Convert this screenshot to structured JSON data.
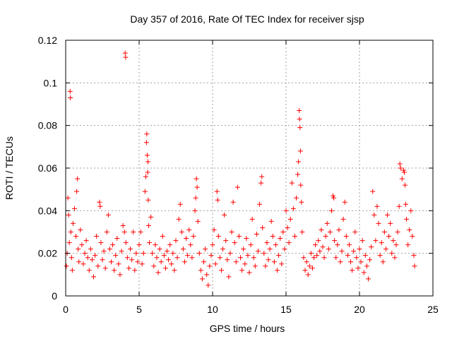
{
  "chart_data": {
    "type": "scatter",
    "title": "Day 357 of 2016, Rate Of TEC Index for receiver sjsp",
    "xlabel": "GPS time / hours",
    "ylabel": "ROTI / TECUs",
    "xlim": [
      0,
      25
    ],
    "ylim": [
      0,
      0.12
    ],
    "x_ticks": [
      0,
      5,
      10,
      15,
      20,
      25
    ],
    "y_ticks": [
      0,
      0.02,
      0.04,
      0.06,
      0.08,
      0.1,
      0.12
    ],
    "x_tick_labels": [
      "0",
      "5",
      "10",
      "15",
      "20",
      "25"
    ],
    "y_tick_labels": [
      "0",
      "0.02",
      "0.04",
      "0.06",
      "0.08",
      "0.1",
      "0.12"
    ],
    "grid": true,
    "marker": "plus",
    "color": "#ff0000",
    "series": [
      {
        "name": "ROTI",
        "points": [
          [
            0.05,
            0.014
          ],
          [
            0.1,
            0.02
          ],
          [
            0.15,
            0.046
          ],
          [
            0.2,
            0.038
          ],
          [
            0.25,
            0.025
          ],
          [
            0.3,
            0.096
          ],
          [
            0.32,
            0.093
          ],
          [
            0.35,
            0.03
          ],
          [
            0.4,
            0.018
          ],
          [
            0.45,
            0.012
          ],
          [
            0.5,
            0.034
          ],
          [
            0.6,
            0.041
          ],
          [
            0.7,
            0.028
          ],
          [
            0.75,
            0.049
          ],
          [
            0.8,
            0.055
          ],
          [
            0.85,
            0.022
          ],
          [
            0.9,
            0.016
          ],
          [
            1.0,
            0.031
          ],
          [
            1.1,
            0.024
          ],
          [
            1.2,
            0.015
          ],
          [
            1.3,
            0.02
          ],
          [
            1.4,
            0.026
          ],
          [
            1.5,
            0.018
          ],
          [
            1.6,
            0.012
          ],
          [
            1.7,
            0.022
          ],
          [
            1.8,
            0.017
          ],
          [
            1.9,
            0.009
          ],
          [
            2.0,
            0.019
          ],
          [
            2.1,
            0.028
          ],
          [
            2.2,
            0.014
          ],
          [
            2.3,
            0.044
          ],
          [
            2.35,
            0.042
          ],
          [
            2.4,
            0.025
          ],
          [
            2.5,
            0.017
          ],
          [
            2.6,
            0.021
          ],
          [
            2.7,
            0.013
          ],
          [
            2.8,
            0.03
          ],
          [
            2.9,
            0.038
          ],
          [
            3.0,
            0.022
          ],
          [
            3.1,
            0.016
          ],
          [
            3.2,
            0.024
          ],
          [
            3.3,
            0.012
          ],
          [
            3.4,
            0.019
          ],
          [
            3.5,
            0.027
          ],
          [
            3.6,
            0.015
          ],
          [
            3.7,
            0.01
          ],
          [
            3.8,
            0.021
          ],
          [
            3.9,
            0.033
          ],
          [
            4.0,
            0.03
          ],
          [
            4.05,
            0.114
          ],
          [
            4.08,
            0.112
          ],
          [
            4.1,
            0.025
          ],
          [
            4.2,
            0.018
          ],
          [
            4.3,
            0.013
          ],
          [
            4.4,
            0.022
          ],
          [
            4.5,
            0.017
          ],
          [
            4.6,
            0.03
          ],
          [
            4.7,
            0.012
          ],
          [
            4.8,
            0.02
          ],
          [
            4.9,
            0.016
          ],
          [
            5.0,
            0.024
          ],
          [
            5.1,
            0.03
          ],
          [
            5.2,
            0.015
          ],
          [
            5.3,
            0.02
          ],
          [
            5.4,
            0.049
          ],
          [
            5.45,
            0.056
          ],
          [
            5.5,
            0.072
          ],
          [
            5.52,
            0.076
          ],
          [
            5.55,
            0.066
          ],
          [
            5.58,
            0.058
          ],
          [
            5.6,
            0.063
          ],
          [
            5.62,
            0.045
          ],
          [
            5.65,
            0.033
          ],
          [
            5.7,
            0.025
          ],
          [
            5.8,
            0.037
          ],
          [
            5.9,
            0.02
          ],
          [
            6.0,
            0.014
          ],
          [
            6.1,
            0.024
          ],
          [
            6.2,
            0.018
          ],
          [
            6.3,
            0.011
          ],
          [
            6.4,
            0.022
          ],
          [
            6.5,
            0.016
          ],
          [
            6.6,
            0.028
          ],
          [
            6.7,
            0.019
          ],
          [
            6.8,
            0.013
          ],
          [
            6.9,
            0.021
          ],
          [
            7.0,
            0.017
          ],
          [
            7.1,
            0.024
          ],
          [
            7.2,
            0.015
          ],
          [
            7.3,
            0.02
          ],
          [
            7.4,
            0.012
          ],
          [
            7.5,
            0.026
          ],
          [
            7.6,
            0.018
          ],
          [
            7.7,
            0.036
          ],
          [
            7.8,
            0.043
          ],
          [
            7.9,
            0.03
          ],
          [
            8.0,
            0.022
          ],
          [
            8.1,
            0.016
          ],
          [
            8.2,
            0.027
          ],
          [
            8.3,
            0.019
          ],
          [
            8.4,
            0.031
          ],
          [
            8.5,
            0.024
          ],
          [
            8.6,
            0.018
          ],
          [
            8.7,
            0.028
          ],
          [
            8.8,
            0.04
          ],
          [
            8.85,
            0.046
          ],
          [
            8.9,
            0.055
          ],
          [
            8.95,
            0.051
          ],
          [
            9.0,
            0.035
          ],
          [
            9.1,
            0.02
          ],
          [
            9.2,
            0.012
          ],
          [
            9.3,
            0.008
          ],
          [
            9.4,
            0.016
          ],
          [
            9.5,
            0.022
          ],
          [
            9.6,
            0.01
          ],
          [
            9.7,
            0.005
          ],
          [
            9.8,
            0.014
          ],
          [
            9.9,
            0.019
          ],
          [
            10.0,
            0.024
          ],
          [
            10.1,
            0.031
          ],
          [
            10.2,
            0.015
          ],
          [
            10.3,
            0.049
          ],
          [
            10.35,
            0.045
          ],
          [
            10.4,
            0.028
          ],
          [
            10.5,
            0.018
          ],
          [
            10.6,
            0.012
          ],
          [
            10.7,
            0.022
          ],
          [
            10.8,
            0.038
          ],
          [
            10.9,
            0.026
          ],
          [
            11.0,
            0.017
          ],
          [
            11.1,
            0.009
          ],
          [
            11.2,
            0.02
          ],
          [
            11.3,
            0.03
          ],
          [
            11.4,
            0.044
          ],
          [
            11.5,
            0.025
          ],
          [
            11.6,
            0.016
          ],
          [
            11.7,
            0.051
          ],
          [
            11.8,
            0.028
          ],
          [
            11.9,
            0.018
          ],
          [
            12.0,
            0.012
          ],
          [
            12.1,
            0.022
          ],
          [
            12.2,
            0.015
          ],
          [
            12.3,
            0.027
          ],
          [
            12.4,
            0.019
          ],
          [
            12.5,
            0.011
          ],
          [
            12.6,
            0.024
          ],
          [
            12.7,
            0.036
          ],
          [
            12.8,
            0.018
          ],
          [
            12.9,
            0.014
          ],
          [
            13.0,
            0.029
          ],
          [
            13.1,
            0.021
          ],
          [
            13.2,
            0.043
          ],
          [
            13.3,
            0.053
          ],
          [
            13.35,
            0.056
          ],
          [
            13.4,
            0.032
          ],
          [
            13.5,
            0.02
          ],
          [
            13.6,
            0.014
          ],
          [
            13.7,
            0.025
          ],
          [
            13.8,
            0.017
          ],
          [
            13.9,
            0.022
          ],
          [
            14.0,
            0.035
          ],
          [
            14.1,
            0.028
          ],
          [
            14.2,
            0.016
          ],
          [
            14.3,
            0.024
          ],
          [
            14.4,
            0.012
          ],
          [
            14.5,
            0.019
          ],
          [
            14.6,
            0.027
          ],
          [
            14.7,
            0.015
          ],
          [
            14.8,
            0.03
          ],
          [
            14.9,
            0.022
          ],
          [
            15.0,
            0.04
          ],
          [
            15.1,
            0.032
          ],
          [
            15.2,
            0.025
          ],
          [
            15.3,
            0.036
          ],
          [
            15.4,
            0.053
          ],
          [
            15.5,
            0.041
          ],
          [
            15.6,
            0.028
          ],
          [
            15.7,
            0.046
          ],
          [
            15.8,
            0.057
          ],
          [
            15.85,
            0.063
          ],
          [
            15.9,
            0.087
          ],
          [
            15.92,
            0.083
          ],
          [
            15.95,
            0.079
          ],
          [
            15.98,
            0.068
          ],
          [
            16.0,
            0.052
          ],
          [
            16.05,
            0.044
          ],
          [
            16.1,
            0.03
          ],
          [
            16.2,
            0.018
          ],
          [
            16.3,
            0.012
          ],
          [
            16.4,
            0.016
          ],
          [
            16.5,
            0.01
          ],
          [
            16.6,
            0.014
          ],
          [
            16.7,
            0.02
          ],
          [
            16.8,
            0.013
          ],
          [
            16.9,
            0.018
          ],
          [
            17.0,
            0.024
          ],
          [
            17.1,
            0.019
          ],
          [
            17.2,
            0.026
          ],
          [
            17.3,
            0.021
          ],
          [
            17.4,
            0.031
          ],
          [
            17.5,
            0.023
          ],
          [
            17.6,
            0.018
          ],
          [
            17.7,
            0.028
          ],
          [
            17.8,
            0.034
          ],
          [
            17.9,
            0.022
          ],
          [
            18.0,
            0.03
          ],
          [
            18.1,
            0.04
          ],
          [
            18.2,
            0.047
          ],
          [
            18.25,
            0.046
          ],
          [
            18.3,
            0.026
          ],
          [
            18.4,
            0.018
          ],
          [
            18.5,
            0.024
          ],
          [
            18.6,
            0.031
          ],
          [
            18.7,
            0.016
          ],
          [
            18.8,
            0.021
          ],
          [
            18.9,
            0.036
          ],
          [
            19.0,
            0.044
          ],
          [
            19.1,
            0.028
          ],
          [
            19.2,
            0.019
          ],
          [
            19.3,
            0.024
          ],
          [
            19.4,
            0.016
          ],
          [
            19.5,
            0.012
          ],
          [
            19.6,
            0.021
          ],
          [
            19.7,
            0.03
          ],
          [
            19.8,
            0.018
          ],
          [
            19.9,
            0.013
          ],
          [
            20.0,
            0.022
          ],
          [
            20.1,
            0.016
          ],
          [
            20.2,
            0.026
          ],
          [
            20.3,
            0.011
          ],
          [
            20.4,
            0.019
          ],
          [
            20.5,
            0.014
          ],
          [
            20.6,
            0.008
          ],
          [
            20.7,
            0.017
          ],
          [
            20.8,
            0.023
          ],
          [
            20.9,
            0.049
          ],
          [
            21.0,
            0.038
          ],
          [
            21.1,
            0.026
          ],
          [
            21.2,
            0.042
          ],
          [
            21.3,
            0.034
          ],
          [
            21.4,
            0.019
          ],
          [
            21.5,
            0.025
          ],
          [
            21.6,
            0.016
          ],
          [
            21.7,
            0.03
          ],
          [
            21.8,
            0.022
          ],
          [
            21.9,
            0.038
          ],
          [
            22.0,
            0.028
          ],
          [
            22.1,
            0.034
          ],
          [
            22.2,
            0.02
          ],
          [
            22.3,
            0.026
          ],
          [
            22.4,
            0.018
          ],
          [
            22.5,
            0.024
          ],
          [
            22.6,
            0.03
          ],
          [
            22.7,
            0.042
          ],
          [
            22.75,
            0.062
          ],
          [
            22.8,
            0.06
          ],
          [
            22.9,
            0.055
          ],
          [
            23.0,
            0.059
          ],
          [
            23.05,
            0.058
          ],
          [
            23.1,
            0.052
          ],
          [
            23.15,
            0.043
          ],
          [
            23.2,
            0.036
          ],
          [
            23.3,
            0.024
          ],
          [
            23.4,
            0.031
          ],
          [
            23.5,
            0.04
          ],
          [
            23.6,
            0.028
          ],
          [
            23.7,
            0.019
          ],
          [
            23.75,
            0.014
          ]
        ]
      }
    ]
  }
}
